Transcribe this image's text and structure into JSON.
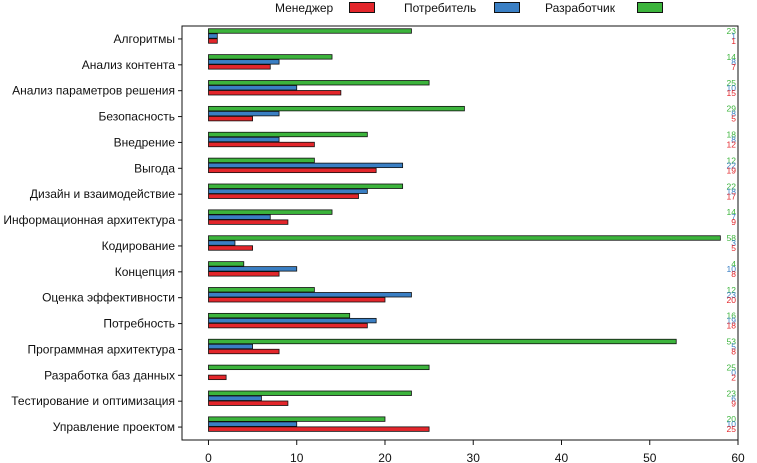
{
  "chart_data": {
    "type": "bar",
    "orientation": "horizontal",
    "legend": [
      "Менеджер",
      "Потребитель",
      "Разработчик"
    ],
    "categories": [
      "Алгоритмы",
      "Анализ контента",
      "Анализ параметров решения",
      "Безопасность",
      "Внедрение",
      "Выгода",
      "Дизайн и взаимодействие",
      "Информационная архитектура",
      "Кодирование",
      "Концепция",
      "Оценка эффективности",
      "Потребность",
      "Программная архитектура",
      "Разработка баз данных",
      "Тестирование и оптимизация",
      "Управление проектом"
    ],
    "series": [
      {
        "name": "Разработчик",
        "color": "#3cb43c",
        "values": [
          23,
          14,
          25,
          29,
          18,
          12,
          22,
          14,
          58,
          4,
          12,
          16,
          53,
          25,
          23,
          20
        ]
      },
      {
        "name": "Потребитель",
        "color": "#3a7fc4",
        "values": [
          1,
          8,
          10,
          8,
          8,
          22,
          18,
          7,
          3,
          10,
          23,
          19,
          5,
          0,
          6,
          10
        ]
      },
      {
        "name": "Менеджер",
        "color": "#e3262b",
        "values": [
          1,
          7,
          15,
          5,
          12,
          19,
          17,
          9,
          5,
          8,
          20,
          18,
          8,
          2,
          9,
          25
        ]
      }
    ],
    "xlim": [
      -3,
      60
    ],
    "xticks": [
      0,
      10,
      20,
      30,
      40,
      50,
      60
    ],
    "title": "",
    "xlabel": "",
    "ylabel": ""
  }
}
